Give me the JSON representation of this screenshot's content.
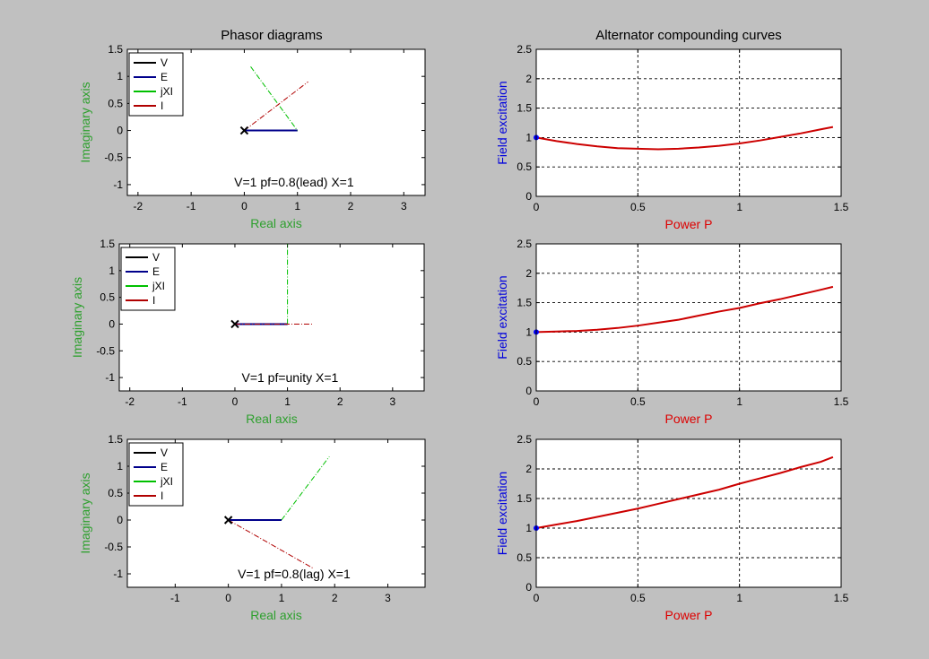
{
  "window": {
    "left_title": "Phasor diagrams",
    "right_title": "Alternator compounding curves"
  },
  "colors": {
    "figure_bg": "#c0c0c0",
    "axes_bg": "#ffffff",
    "V": "#000000",
    "E": "#00008b",
    "jXI": "#00c000",
    "I": "#b00000",
    "phasor_xlabel": "#2ea02e",
    "phasor_ylabel": "#2ea02e",
    "curve_xlabel": "#dd0000",
    "curve_ylabel": "#0000dd",
    "curve": "#cc0000",
    "start_marker": "#0000ff"
  },
  "chart_data": [
    {
      "type": "line",
      "subplot": "phasor-lead",
      "title": "Phasor diagrams",
      "xlabel": "Real axis",
      "ylabel": "Imaginary axis",
      "xlim": [
        -2.2,
        3.4
      ],
      "ylim": [
        -1.2,
        1.5
      ],
      "xticks": [
        -2,
        -1,
        0,
        1,
        2,
        3
      ],
      "yticks": [
        -1,
        -0.5,
        0,
        0.5,
        1,
        1.5
      ],
      "tick_labels_x": [
        "-2",
        "-1",
        "0",
        "1",
        "2",
        "3"
      ],
      "tick_labels_y": [
        "-1",
        "-0.5",
        "0",
        "0.5",
        "1",
        "1.5"
      ],
      "annotation": "V=1  pf=0.8(lead)  X=1",
      "legend": [
        "V",
        "E",
        "jXI",
        "I"
      ],
      "legend_position": "top-left",
      "series": [
        {
          "name": "V",
          "color": "#000000",
          "points": [
            [
              0,
              0
            ],
            [
              1,
              0
            ]
          ]
        },
        {
          "name": "E",
          "color": "#00008b",
          "points": [
            [
              0,
              0
            ],
            [
              1,
              0
            ]
          ]
        },
        {
          "name": "jXI",
          "color": "#00c000",
          "dashed": true,
          "points": [
            [
              0.12,
              1.18
            ],
            [
              1,
              0
            ]
          ]
        },
        {
          "name": "I",
          "color": "#b00000",
          "dashed": true,
          "points": [
            [
              0,
              0
            ],
            [
              1.2,
              0.9
            ]
          ]
        }
      ]
    },
    {
      "type": "line",
      "subplot": "phasor-unity",
      "xlabel": "Real axis",
      "ylabel": "Imaginary axis",
      "xlim": [
        -2.2,
        3.6
      ],
      "ylim": [
        -1.25,
        1.5
      ],
      "xticks": [
        -2,
        -1,
        0,
        1,
        2,
        3
      ],
      "yticks": [
        -1,
        -0.5,
        0,
        0.5,
        1,
        1.5
      ],
      "tick_labels_x": [
        "-2",
        "-1",
        "0",
        "1",
        "2",
        "3"
      ],
      "tick_labels_y": [
        "-1",
        "-0.5",
        "0",
        "0.5",
        "1",
        "1.5"
      ],
      "annotation": "V=1  pf=unity  X=1",
      "legend": [
        "V",
        "E",
        "jXI",
        "I"
      ],
      "legend_position": "top-left",
      "series": [
        {
          "name": "V",
          "color": "#000000",
          "points": [
            [
              0,
              0
            ],
            [
              1,
              0
            ]
          ]
        },
        {
          "name": "E",
          "color": "#00008b",
          "points": [
            [
              0,
              0
            ],
            [
              1,
              0
            ]
          ]
        },
        {
          "name": "jXI",
          "color": "#00c000",
          "dashed": true,
          "points": [
            [
              1,
              0
            ],
            [
              1,
              1.5
            ]
          ]
        },
        {
          "name": "I",
          "color": "#b00000",
          "dashed": true,
          "points": [
            [
              0,
              0
            ],
            [
              1.5,
              0
            ]
          ]
        }
      ]
    },
    {
      "type": "line",
      "subplot": "phasor-lag",
      "xlabel": "Real axis",
      "ylabel": "Imaginary axis",
      "xlim": [
        -1.9,
        3.7
      ],
      "ylim": [
        -1.25,
        1.5
      ],
      "xticks": [
        -1,
        0,
        1,
        2,
        3
      ],
      "yticks": [
        -1,
        -0.5,
        0,
        0.5,
        1,
        1.5
      ],
      "tick_labels_x": [
        "-1",
        "0",
        "1",
        "2",
        "3"
      ],
      "tick_labels_y": [
        "-1",
        "-0.5",
        "0",
        "0.5",
        "1",
        "1.5"
      ],
      "annotation": "V=1  pf=0.8(lag)  X=1",
      "legend": [
        "V",
        "E",
        "jXI",
        "I"
      ],
      "legend_position": "top-left",
      "series": [
        {
          "name": "V",
          "color": "#000000",
          "points": [
            [
              0,
              0
            ],
            [
              1,
              0
            ]
          ]
        },
        {
          "name": "E",
          "color": "#00008b",
          "points": [
            [
              0,
              0
            ],
            [
              1,
              0
            ]
          ]
        },
        {
          "name": "jXI",
          "color": "#00c000",
          "dashed": true,
          "points": [
            [
              1,
              0
            ],
            [
              1.9,
              1.18
            ]
          ]
        },
        {
          "name": "I",
          "color": "#b00000",
          "dashed": true,
          "points": [
            [
              0,
              0
            ],
            [
              1.6,
              -0.9
            ]
          ]
        }
      ]
    },
    {
      "type": "line",
      "subplot": "curve-lead",
      "title": "Alternator compounding curves",
      "xlabel": "Power P",
      "ylabel": "Field excitation",
      "xlim": [
        0,
        1.5
      ],
      "ylim": [
        0,
        2.5
      ],
      "grid": true,
      "xticks": [
        0,
        0.5,
        1,
        1.5
      ],
      "yticks": [
        0,
        0.5,
        1,
        1.5,
        2,
        2.5
      ],
      "tick_labels_x": [
        "0",
        "0.5",
        "1",
        "1.5"
      ],
      "tick_labels_y": [
        "0",
        "0.5",
        "1",
        "1.5",
        "2",
        "2.5"
      ],
      "x": [
        0,
        0.1,
        0.2,
        0.3,
        0.4,
        0.5,
        0.6,
        0.7,
        0.8,
        0.9,
        1.0,
        1.1,
        1.2,
        1.3,
        1.4,
        1.46
      ],
      "y": [
        1.0,
        0.94,
        0.89,
        0.85,
        0.82,
        0.81,
        0.8,
        0.81,
        0.83,
        0.86,
        0.9,
        0.95,
        1.01,
        1.07,
        1.14,
        1.18
      ],
      "start_point": [
        0,
        1.0
      ]
    },
    {
      "type": "line",
      "subplot": "curve-unity",
      "xlabel": "Power P",
      "ylabel": "Field excitation",
      "xlim": [
        0,
        1.5
      ],
      "ylim": [
        0,
        2.5
      ],
      "grid": true,
      "xticks": [
        0,
        0.5,
        1,
        1.5
      ],
      "yticks": [
        0,
        0.5,
        1,
        1.5,
        2,
        2.5
      ],
      "tick_labels_x": [
        "0",
        "0.5",
        "1",
        "1.5"
      ],
      "tick_labels_y": [
        "0",
        "0.5",
        "1",
        "1.5",
        "2",
        "2.5"
      ],
      "x": [
        0,
        0.1,
        0.2,
        0.3,
        0.4,
        0.5,
        0.6,
        0.7,
        0.8,
        0.9,
        1.0,
        1.1,
        1.2,
        1.3,
        1.4,
        1.46
      ],
      "y": [
        1.0,
        1.01,
        1.02,
        1.04,
        1.07,
        1.11,
        1.16,
        1.21,
        1.28,
        1.35,
        1.41,
        1.49,
        1.56,
        1.64,
        1.72,
        1.77
      ],
      "start_point": [
        0,
        1.0
      ]
    },
    {
      "type": "line",
      "subplot": "curve-lag",
      "xlabel": "Power P",
      "ylabel": "Field excitation",
      "xlim": [
        0,
        1.5
      ],
      "ylim": [
        0,
        2.5
      ],
      "grid": true,
      "xticks": [
        0,
        0.5,
        1,
        1.5
      ],
      "yticks": [
        0,
        0.5,
        1,
        1.5,
        2,
        2.5
      ],
      "tick_labels_x": [
        "0",
        "0.5",
        "1",
        "1.5"
      ],
      "tick_labels_y": [
        "0",
        "0.5",
        "1",
        "1.5",
        "2",
        "2.5"
      ],
      "x": [
        0,
        0.1,
        0.2,
        0.3,
        0.4,
        0.5,
        0.6,
        0.7,
        0.8,
        0.9,
        1.0,
        1.1,
        1.2,
        1.3,
        1.4,
        1.46
      ],
      "y": [
        1.0,
        1.06,
        1.12,
        1.19,
        1.26,
        1.33,
        1.41,
        1.49,
        1.57,
        1.65,
        1.75,
        1.84,
        1.93,
        2.03,
        2.12,
        2.2
      ],
      "start_point": [
        0,
        1.0
      ]
    }
  ]
}
